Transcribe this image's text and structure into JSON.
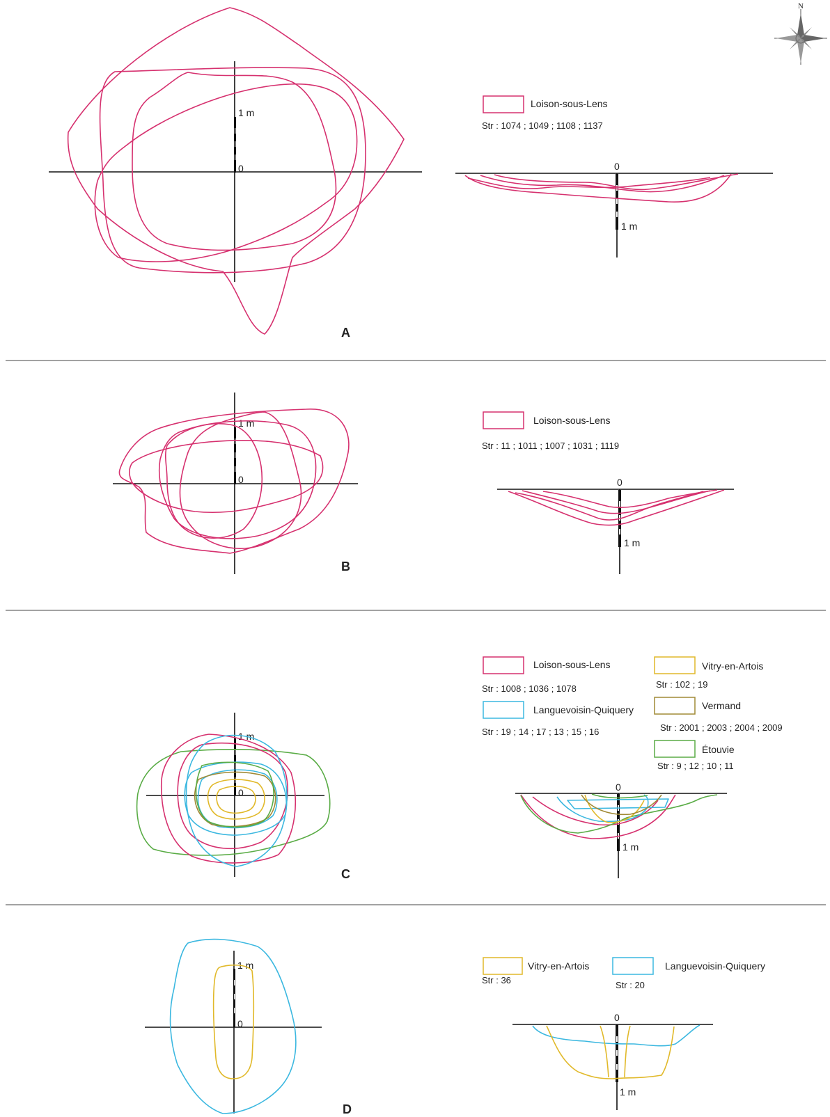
{
  "colors": {
    "loison": "#d6316f",
    "vitry": "#e1b92a",
    "languevoisin": "#3cb8e0",
    "vermand": "#a18a36",
    "etouvie": "#5aac46"
  },
  "compass": {
    "north_label": "N",
    "icon": "compass-rose-icon"
  },
  "scale": {
    "zero": "0",
    "one_m": "1 m"
  },
  "panels": [
    {
      "letter": "A",
      "legend": [
        {
          "site": "Loison-sous-Lens",
          "color_key": "loison",
          "structures": "Str : 1074 ; 1049 ; 1108 ; 1137"
        }
      ]
    },
    {
      "letter": "B",
      "legend": [
        {
          "site": "Loison-sous-Lens",
          "color_key": "loison",
          "structures": "Str : 11 ; 1011 ; 1007 ; 1031 ; 1119"
        }
      ]
    },
    {
      "letter": "C",
      "legend": [
        {
          "site": "Loison-sous-Lens",
          "color_key": "loison",
          "structures": "Str : 1008 ; 1036 ; 1078"
        },
        {
          "site": "Languevoisin-Quiquery",
          "color_key": "languevoisin",
          "structures": "Str : 19 ; 14 ; 17 ; 13 ; 15 ; 16"
        },
        {
          "site": "Vitry-en-Artois",
          "color_key": "vitry",
          "structures": "Str : 102 ; 19"
        },
        {
          "site": "Vermand",
          "color_key": "vermand",
          "structures": "Str : 2001 ; 2003 ; 2004 ; 2009"
        },
        {
          "site": "Étouvie",
          "color_key": "etouvie",
          "structures": "Str : 9 ; 12 ; 10 ; 11"
        }
      ]
    },
    {
      "letter": "D",
      "legend": [
        {
          "site": "Vitry-en-Artois",
          "color_key": "vitry",
          "structures": "Str : 36"
        },
        {
          "site": "Languevoisin-Quiquery",
          "color_key": "languevoisin",
          "structures": "Str : 20"
        }
      ]
    }
  ]
}
